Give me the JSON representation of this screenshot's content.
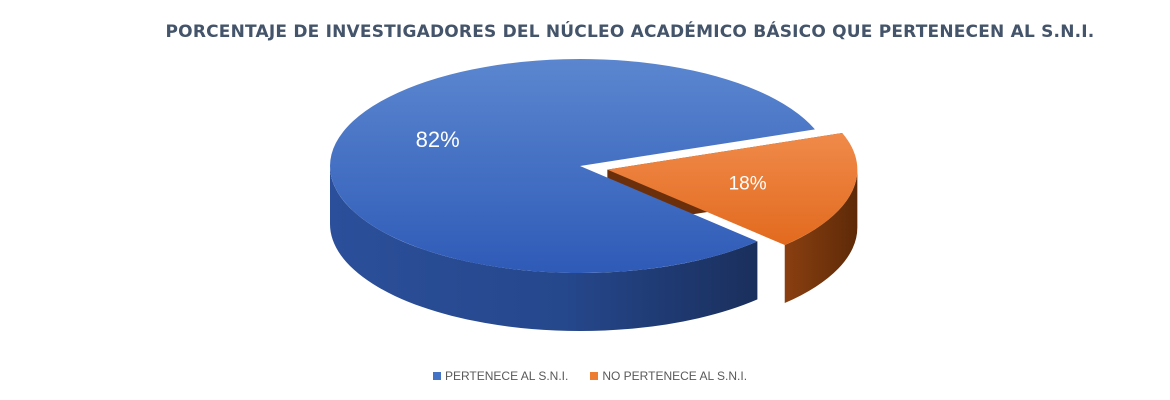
{
  "chart_data": {
    "type": "pie",
    "title": "PORCENTAJE DE INVESTIGADORES DEL NÚCLEO ACADÉMICO BÁSICO QUE PERTENECEN AL S.N.I.",
    "categories": [
      "PERTENECE AL S.N.I.",
      "NO PERTENECE AL S.N.I."
    ],
    "values": [
      82,
      18
    ],
    "data_labels": [
      "82%",
      "18%"
    ],
    "colors": [
      "#4472c4",
      "#ed7d31"
    ],
    "legend_position": "bottom",
    "three_d": true,
    "exploded_slice": "NO PERTENECE AL S.N.I."
  }
}
